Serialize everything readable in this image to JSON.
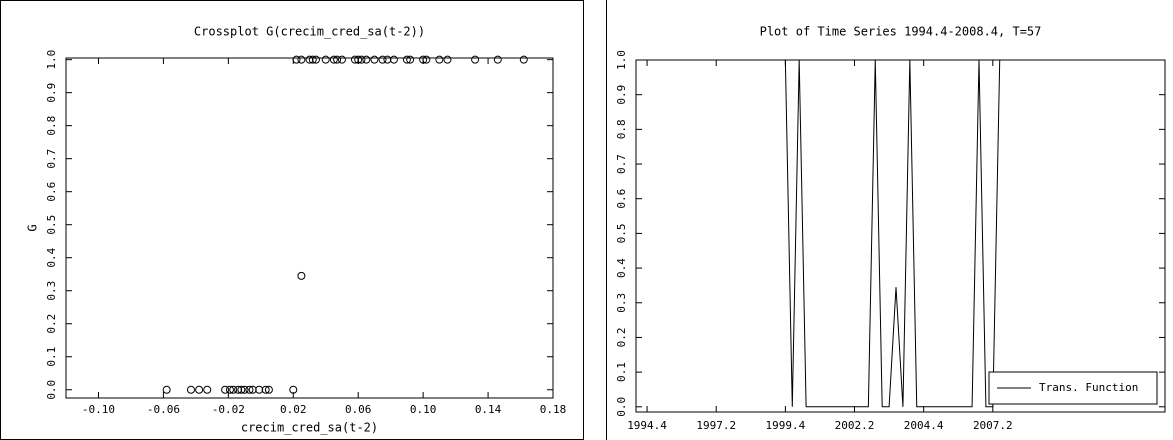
{
  "chart_data": [
    {
      "type": "scatter",
      "title": "Crossplot G(crecim_cred_sa(t-2))",
      "x_label": "crecim_cred_sa(t-2)",
      "y_label": "G",
      "x": [
        0.022,
        0.025,
        0.03,
        0.032,
        0.034,
        0.04,
        0.045,
        0.047,
        0.05,
        0.058,
        0.06,
        0.062,
        0.065,
        0.07,
        0.075,
        0.078,
        0.082,
        0.09,
        0.092,
        0.1,
        0.102,
        0.11,
        0.115,
        0.132,
        0.146,
        0.162,
        -0.058,
        -0.043,
        -0.038,
        -0.033,
        -0.022,
        -0.019,
        -0.017,
        -0.014,
        -0.012,
        -0.01,
        -0.007,
        -0.005,
        -0.001,
        0.003,
        0.005,
        0.02,
        0.025
      ],
      "y": [
        1,
        1,
        1,
        1,
        1,
        1,
        1,
        1,
        1,
        1,
        1,
        1,
        1,
        1,
        1,
        1,
        1,
        1,
        1,
        1,
        1,
        1,
        1,
        1,
        1,
        1,
        0,
        0,
        0,
        0,
        0,
        0,
        0,
        0,
        0,
        0,
        0,
        0,
        0,
        0,
        0,
        0,
        0.345
      ],
      "color": "#000000",
      "xlim": [
        -0.12,
        0.18
      ],
      "xticks": [
        {
          "value": -0.1,
          "label": "-0.10"
        },
        {
          "value": -0.06,
          "label": "-0.06"
        },
        {
          "value": -0.02,
          "label": "-0.02"
        },
        0.02,
        0.06,
        {
          "value": 0.1,
          "label": "0.10"
        },
        0.14,
        0.18
      ],
      "ylim": [
        -0.025,
        1.005
      ],
      "yticks": [
        {
          "value": 0,
          "label": "0.0"
        },
        0.1,
        0.2,
        0.3,
        0.4,
        0.5,
        0.6,
        0.7,
        0.8,
        0.9,
        {
          "value": 1,
          "label": "1.0"
        }
      ]
    },
    {
      "type": "line",
      "title": "Plot of Time Series 1994.4-2008.4, T=57",
      "categories": [
        "1994.4",
        null,
        null,
        null,
        null,
        null,
        null,
        null,
        null,
        null,
        "1997.2",
        null,
        null,
        null,
        null,
        null,
        null,
        null,
        null,
        null,
        "1999.4",
        null,
        null,
        null,
        null,
        null,
        null,
        null,
        null,
        null,
        "2002.2",
        null,
        null,
        null,
        null,
        null,
        null,
        null,
        null,
        null,
        "2004.4",
        null,
        null,
        null,
        null,
        null,
        null,
        null,
        null,
        null,
        "2007.2",
        null,
        null,
        null,
        null,
        null,
        null
      ],
      "series": [
        {
          "name": "Trans. Function",
          "color": "#000000",
          "values": [
            1,
            1,
            1,
            1,
            1,
            1,
            1,
            1,
            1,
            1,
            1,
            1,
            1,
            1,
            1,
            1,
            1,
            1,
            1,
            1,
            1,
            0,
            1,
            0,
            0,
            0,
            0,
            0,
            0,
            0,
            0,
            0,
            0,
            1,
            0,
            0,
            0.345,
            0,
            1,
            0,
            0,
            0,
            0,
            0,
            0,
            0,
            0,
            0,
            1,
            0,
            0,
            1,
            1,
            1,
            1,
            1,
            1
          ]
        }
      ],
      "ylim": [
        -0.015,
        1.0
      ],
      "yticks": [
        {
          "value": 0,
          "label": "0.0"
        },
        0.1,
        0.2,
        0.3,
        0.4,
        0.5,
        0.6,
        0.7,
        0.8,
        0.9,
        {
          "value": 1,
          "label": "1.0"
        }
      ],
      "legend": "lower right"
    }
  ]
}
